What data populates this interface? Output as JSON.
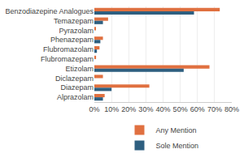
{
  "chart_data": {
    "type": "bar",
    "orientation": "horizontal",
    "categories": [
      "Benzodiazepine Analogues",
      "Temazepam",
      "Pyrazolam",
      "Phenazepam",
      "Flubromazolam",
      "Flubromazepam",
      "Etizolam",
      "Diclazepam",
      "Diazepam",
      "Alprazolam"
    ],
    "series": [
      {
        "name": "Any Mention",
        "color": "#E07040",
        "values": [
          73,
          8,
          0.5,
          5,
          3,
          1,
          67,
          5,
          32,
          6
        ]
      },
      {
        "name": "Sole Mention",
        "color": "#2E5F80",
        "values": [
          58,
          5,
          0,
          3.5,
          1.5,
          0,
          52,
          0,
          10,
          5
        ]
      }
    ],
    "xlim": [
      0,
      80
    ],
    "xticks": [
      {
        "value": 0,
        "label": "0%"
      },
      {
        "value": 10,
        "label": "10%"
      },
      {
        "value": 20,
        "label": "20%"
      },
      {
        "value": 30,
        "label": "30%"
      },
      {
        "value": 40,
        "label": "40%"
      },
      {
        "value": 50,
        "label": "50%"
      },
      {
        "value": 60,
        "label": "60%"
      },
      {
        "value": 70,
        "label": "70%"
      },
      {
        "value": 80,
        "label": "80%"
      }
    ],
    "grid": true,
    "legend": "bottom"
  }
}
